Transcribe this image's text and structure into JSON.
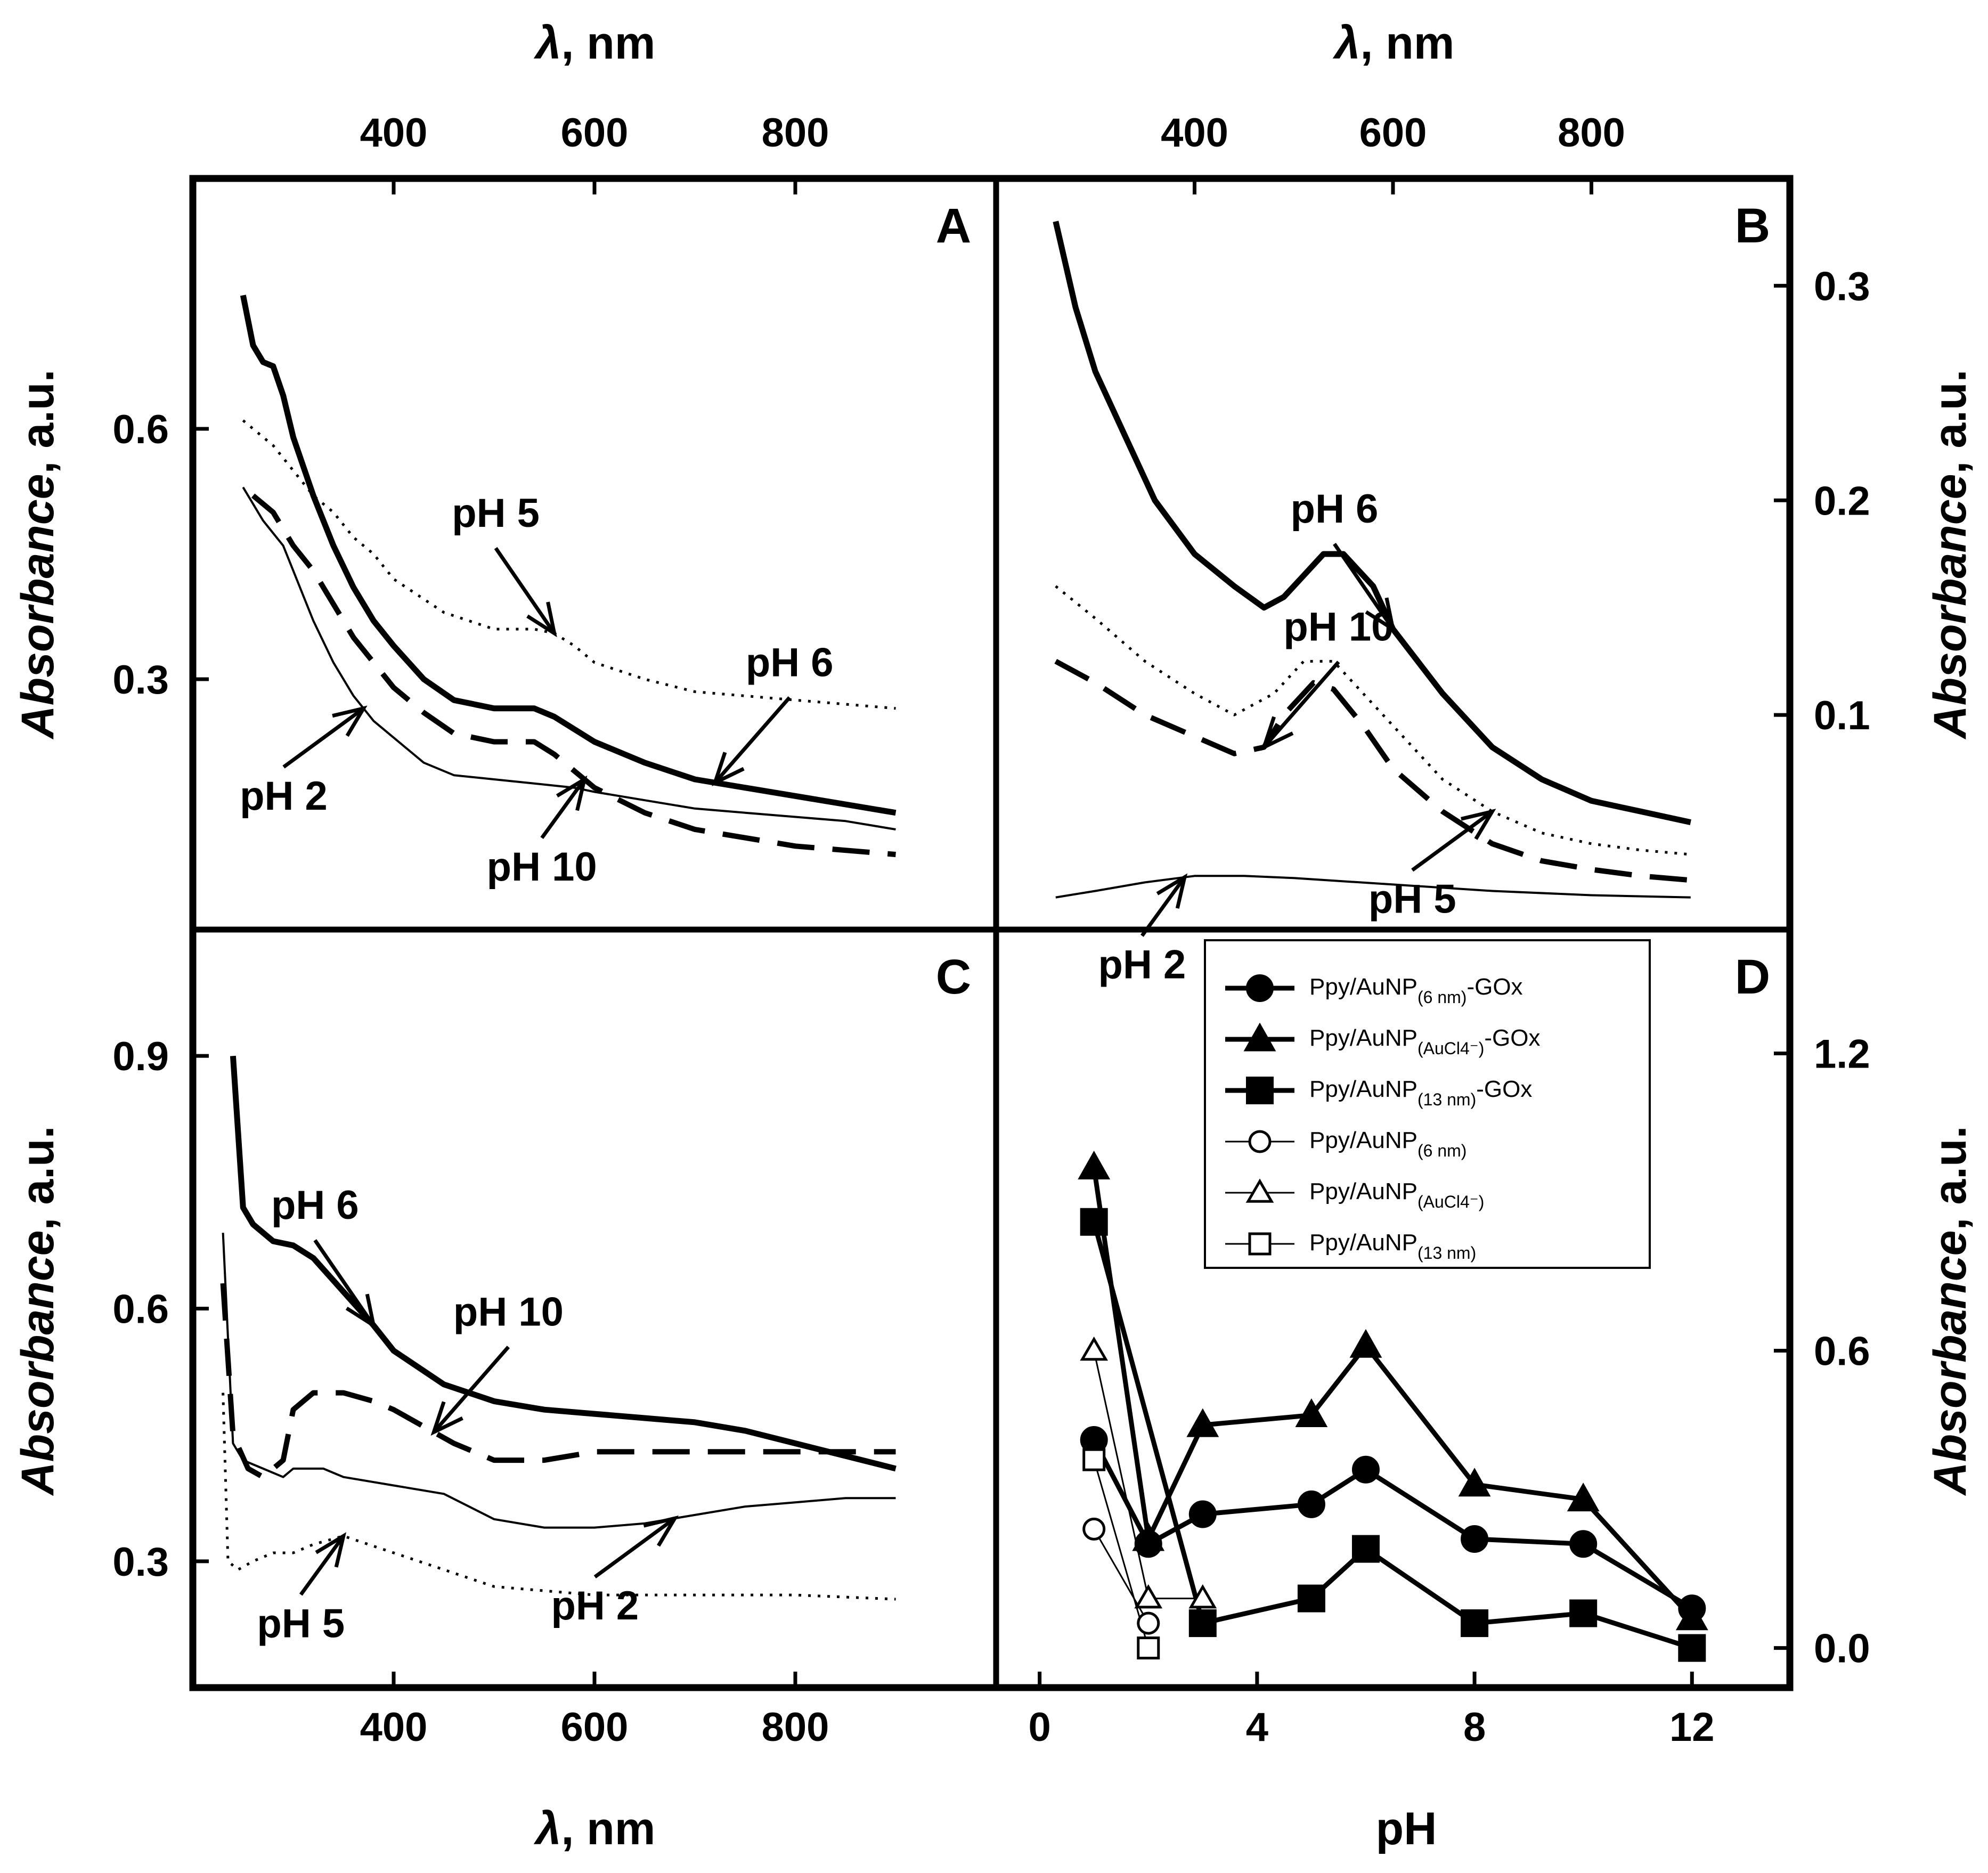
{
  "chart_data": [
    {
      "panel": "A",
      "type": "line",
      "xlabel_symbol": "λ",
      "xlabel_rest": ", nm",
      "xlabel_position": "top",
      "ylabel_italic": "Absorbance",
      "ylabel_rest": ", a.u.",
      "ylabel_position": "left",
      "xlim": [
        200,
        1000
      ],
      "xticks": [
        400,
        600,
        800
      ],
      "ylim": [
        0.0,
        0.9
      ],
      "yticks": [
        "0.3",
        "0.6"
      ],
      "series": [
        {
          "name": "pH 6",
          "style": "solid",
          "x": [
            250,
            260,
            270,
            280,
            290,
            300,
            320,
            340,
            360,
            380,
            400,
            430,
            460,
            500,
            540,
            560,
            580,
            600,
            650,
            700,
            750,
            800,
            850,
            900
          ],
          "y": [
            0.76,
            0.7,
            0.68,
            0.675,
            0.64,
            0.59,
            0.52,
            0.46,
            0.41,
            0.37,
            0.34,
            0.3,
            0.275,
            0.265,
            0.265,
            0.255,
            0.24,
            0.225,
            0.2,
            0.18,
            0.17,
            0.16,
            0.15,
            0.14
          ]
        },
        {
          "name": "pH 5",
          "style": "dotted",
          "x": [
            250,
            280,
            300,
            320,
            340,
            360,
            380,
            400,
            450,
            500,
            540,
            560,
            580,
            600,
            650,
            700,
            750,
            800,
            850,
            900
          ],
          "y": [
            0.61,
            0.58,
            0.55,
            0.52,
            0.5,
            0.47,
            0.45,
            0.42,
            0.38,
            0.36,
            0.36,
            0.355,
            0.34,
            0.32,
            0.3,
            0.285,
            0.28,
            0.275,
            0.27,
            0.265
          ]
        },
        {
          "name": "pH 10",
          "style": "dashed",
          "x": [
            260,
            280,
            300,
            320,
            340,
            360,
            380,
            400,
            430,
            460,
            500,
            540,
            560,
            580,
            600,
            650,
            700,
            750,
            800,
            850,
            900
          ],
          "y": [
            0.52,
            0.5,
            0.46,
            0.43,
            0.39,
            0.35,
            0.32,
            0.29,
            0.26,
            0.235,
            0.225,
            0.225,
            0.21,
            0.19,
            0.17,
            0.14,
            0.12,
            0.11,
            0.1,
            0.095,
            0.09
          ]
        },
        {
          "name": "pH 2",
          "style": "thin",
          "x": [
            250,
            270,
            290,
            300,
            320,
            340,
            360,
            380,
            400,
            430,
            460,
            500,
            540,
            580,
            600,
            650,
            700,
            750,
            800,
            850,
            900
          ],
          "y": [
            0.53,
            0.49,
            0.46,
            0.43,
            0.37,
            0.32,
            0.28,
            0.25,
            0.23,
            0.2,
            0.185,
            0.18,
            0.175,
            0.17,
            0.165,
            0.155,
            0.145,
            0.14,
            0.135,
            0.13,
            0.12
          ]
        }
      ],
      "annotations": [
        {
          "text": "pH 5",
          "series": "pH 5",
          "x": 560
        },
        {
          "text": "pH 6",
          "series": "pH 6",
          "x": 720
        },
        {
          "text": "pH 2",
          "series": "pH 2",
          "x": 370
        },
        {
          "text": "pH 10",
          "series": "pH 10",
          "x": 590
        }
      ]
    },
    {
      "panel": "B",
      "type": "line",
      "xlabel_symbol": "λ",
      "xlabel_rest": ", nm",
      "xlabel_position": "top",
      "ylabel_italic": "Absorbance",
      "ylabel_rest": ", a.u.",
      "ylabel_position": "right",
      "xlim": [
        200,
        1000
      ],
      "xticks": [
        400,
        600,
        800
      ],
      "ylim": [
        0.0,
        0.35
      ],
      "yticks": [
        "0.1",
        "0.2",
        "0.3"
      ],
      "series": [
        {
          "name": "pH 6",
          "style": "solid",
          "x": [
            260,
            280,
            300,
            330,
            360,
            400,
            440,
            470,
            490,
            510,
            530,
            550,
            580,
            600,
            650,
            700,
            750,
            800,
            850,
            900
          ],
          "y": [
            0.33,
            0.29,
            0.26,
            0.23,
            0.2,
            0.175,
            0.16,
            0.15,
            0.155,
            0.165,
            0.175,
            0.175,
            0.16,
            0.14,
            0.11,
            0.085,
            0.07,
            0.06,
            0.055,
            0.05
          ]
        },
        {
          "name": "pH 5",
          "style": "dotted",
          "x": [
            260,
            300,
            350,
            400,
            440,
            480,
            510,
            540,
            570,
            600,
            650,
            700,
            750,
            800,
            850,
            900
          ],
          "y": [
            0.16,
            0.145,
            0.125,
            0.11,
            0.1,
            0.11,
            0.125,
            0.125,
            0.11,
            0.095,
            0.07,
            0.055,
            0.045,
            0.04,
            0.037,
            0.035
          ]
        },
        {
          "name": "pH 10",
          "style": "dashed",
          "x": [
            260,
            300,
            350,
            400,
            440,
            470,
            490,
            520,
            540,
            570,
            600,
            650,
            700,
            750,
            800,
            850,
            900
          ],
          "y": [
            0.125,
            0.115,
            0.1,
            0.09,
            0.082,
            0.085,
            0.1,
            0.115,
            0.112,
            0.095,
            0.075,
            0.055,
            0.04,
            0.032,
            0.028,
            0.025,
            0.023
          ]
        },
        {
          "name": "pH 2",
          "style": "thin",
          "x": [
            260,
            300,
            350,
            400,
            450,
            500,
            600,
            700,
            800,
            900
          ],
          "y": [
            0.015,
            0.018,
            0.022,
            0.025,
            0.025,
            0.024,
            0.021,
            0.018,
            0.016,
            0.015
          ]
        }
      ],
      "annotations": [
        {
          "text": "pH 6",
          "series": "pH 6",
          "x": 600
        },
        {
          "text": "pH 10",
          "series": "pH 10",
          "x": 470
        },
        {
          "text": "pH 5",
          "series": "pH 5",
          "x": 700
        },
        {
          "text": "pH 2",
          "series": "pH 2",
          "x": 390
        }
      ]
    },
    {
      "panel": "C",
      "type": "line",
      "xlabel_symbol": "λ",
      "xlabel_rest": ", nm",
      "xlabel_position": "bottom",
      "ylabel_italic": "Absorbance",
      "ylabel_rest": ", a.u.",
      "ylabel_position": "left",
      "xlim": [
        200,
        1000
      ],
      "xticks": [
        400,
        600,
        800
      ],
      "ylim": [
        0.15,
        1.05
      ],
      "yticks": [
        "0.3",
        "0.6",
        "0.9"
      ],
      "series": [
        {
          "name": "pH 6",
          "style": "solid",
          "x": [
            240,
            250,
            260,
            280,
            300,
            320,
            350,
            380,
            400,
            450,
            500,
            550,
            600,
            650,
            700,
            750,
            800,
            850,
            900
          ],
          "y": [
            0.9,
            0.72,
            0.7,
            0.68,
            0.675,
            0.66,
            0.62,
            0.58,
            0.55,
            0.51,
            0.49,
            0.48,
            0.475,
            0.47,
            0.465,
            0.455,
            0.44,
            0.425,
            0.41
          ]
        },
        {
          "name": "pH 10",
          "style": "dashed",
          "x": [
            230,
            240,
            255,
            270,
            290,
            300,
            320,
            350,
            380,
            400,
            430,
            460,
            500,
            550,
            600,
            700,
            800,
            900
          ],
          "y": [
            0.63,
            0.45,
            0.41,
            0.4,
            0.42,
            0.48,
            0.5,
            0.5,
            0.49,
            0.48,
            0.46,
            0.44,
            0.42,
            0.42,
            0.43,
            0.43,
            0.43,
            0.43
          ]
        },
        {
          "name": "pH 2",
          "style": "thin",
          "x": [
            230,
            240,
            250,
            270,
            290,
            300,
            330,
            350,
            400,
            450,
            500,
            550,
            600,
            650,
            700,
            750,
            800,
            850,
            900
          ],
          "y": [
            0.69,
            0.44,
            0.42,
            0.41,
            0.4,
            0.41,
            0.41,
            0.4,
            0.39,
            0.38,
            0.35,
            0.34,
            0.34,
            0.345,
            0.355,
            0.365,
            0.37,
            0.375,
            0.375
          ]
        },
        {
          "name": "pH 5",
          "style": "dotted",
          "x": [
            230,
            235,
            245,
            260,
            280,
            300,
            320,
            350,
            400,
            450,
            500,
            550,
            600,
            650,
            700,
            800,
            900
          ],
          "y": [
            0.5,
            0.3,
            0.29,
            0.3,
            0.31,
            0.31,
            0.32,
            0.33,
            0.31,
            0.29,
            0.27,
            0.265,
            0.26,
            0.26,
            0.26,
            0.26,
            0.255
          ]
        }
      ],
      "annotations": [
        {
          "text": "pH 6",
          "series": "pH 6",
          "x": 380
        },
        {
          "text": "pH 10",
          "series": "pH 10",
          "x": 440
        },
        {
          "text": "pH 2",
          "series": "pH 2",
          "x": 680
        },
        {
          "text": "pH 5",
          "series": "pH 5",
          "x": 350
        }
      ]
    },
    {
      "panel": "D",
      "type": "line",
      "xlabel": "pH",
      "xlabel_position": "bottom",
      "ylabel_italic": "Absorbance",
      "ylabel_rest": ", a.u.",
      "ylabel_position": "right",
      "xlim": [
        -0.8,
        13.8
      ],
      "xticks": [
        "0",
        "4",
        "8",
        "12"
      ],
      "ylim": [
        -0.08,
        1.45
      ],
      "yticks": [
        "0.0",
        "0.6",
        "1.2"
      ],
      "legend_position": "top-right",
      "series": [
        {
          "name": "Ppy/AuNP",
          "sub": "(6 nm)",
          "suffix": "-GOx",
          "marker": "circle",
          "filled": true,
          "x": [
            1,
            2,
            3,
            5,
            6,
            8,
            10,
            12
          ],
          "y": [
            0.42,
            0.21,
            0.27,
            0.29,
            0.36,
            0.22,
            0.21,
            0.08
          ]
        },
        {
          "name": "Ppy/AuNP",
          "sub": "(AuCl4⁻)",
          "suffix": "-GOx",
          "marker": "triangle",
          "filled": true,
          "x": [
            1,
            2,
            3,
            5,
            6,
            8,
            10,
            12
          ],
          "y": [
            0.97,
            0.22,
            0.45,
            0.47,
            0.61,
            0.33,
            0.3,
            0.06
          ]
        },
        {
          "name": "Ppy/AuNP",
          "sub": "(13 nm)",
          "suffix": "-GOx",
          "marker": "square",
          "filled": true,
          "x": [
            1,
            3,
            5,
            6,
            8,
            10,
            12
          ],
          "y": [
            0.86,
            0.05,
            0.1,
            0.2,
            0.05,
            0.07,
            0.0
          ]
        },
        {
          "name": "Ppy/AuNP",
          "sub": "(6 nm)",
          "suffix": "",
          "marker": "circle",
          "filled": false,
          "x": [
            1,
            2
          ],
          "y": [
            0.24,
            0.05
          ]
        },
        {
          "name": "Ppy/AuNP",
          "sub": "(AuCl4⁻)",
          "suffix": "",
          "marker": "triangle",
          "filled": false,
          "x": [
            1,
            2,
            3
          ],
          "y": [
            0.6,
            0.1,
            0.1
          ]
        },
        {
          "name": "Ppy/AuNP",
          "sub": "(13 nm)",
          "suffix": "",
          "marker": "square",
          "filled": false,
          "x": [
            1,
            2
          ],
          "y": [
            0.38,
            0.0
          ]
        }
      ]
    }
  ]
}
